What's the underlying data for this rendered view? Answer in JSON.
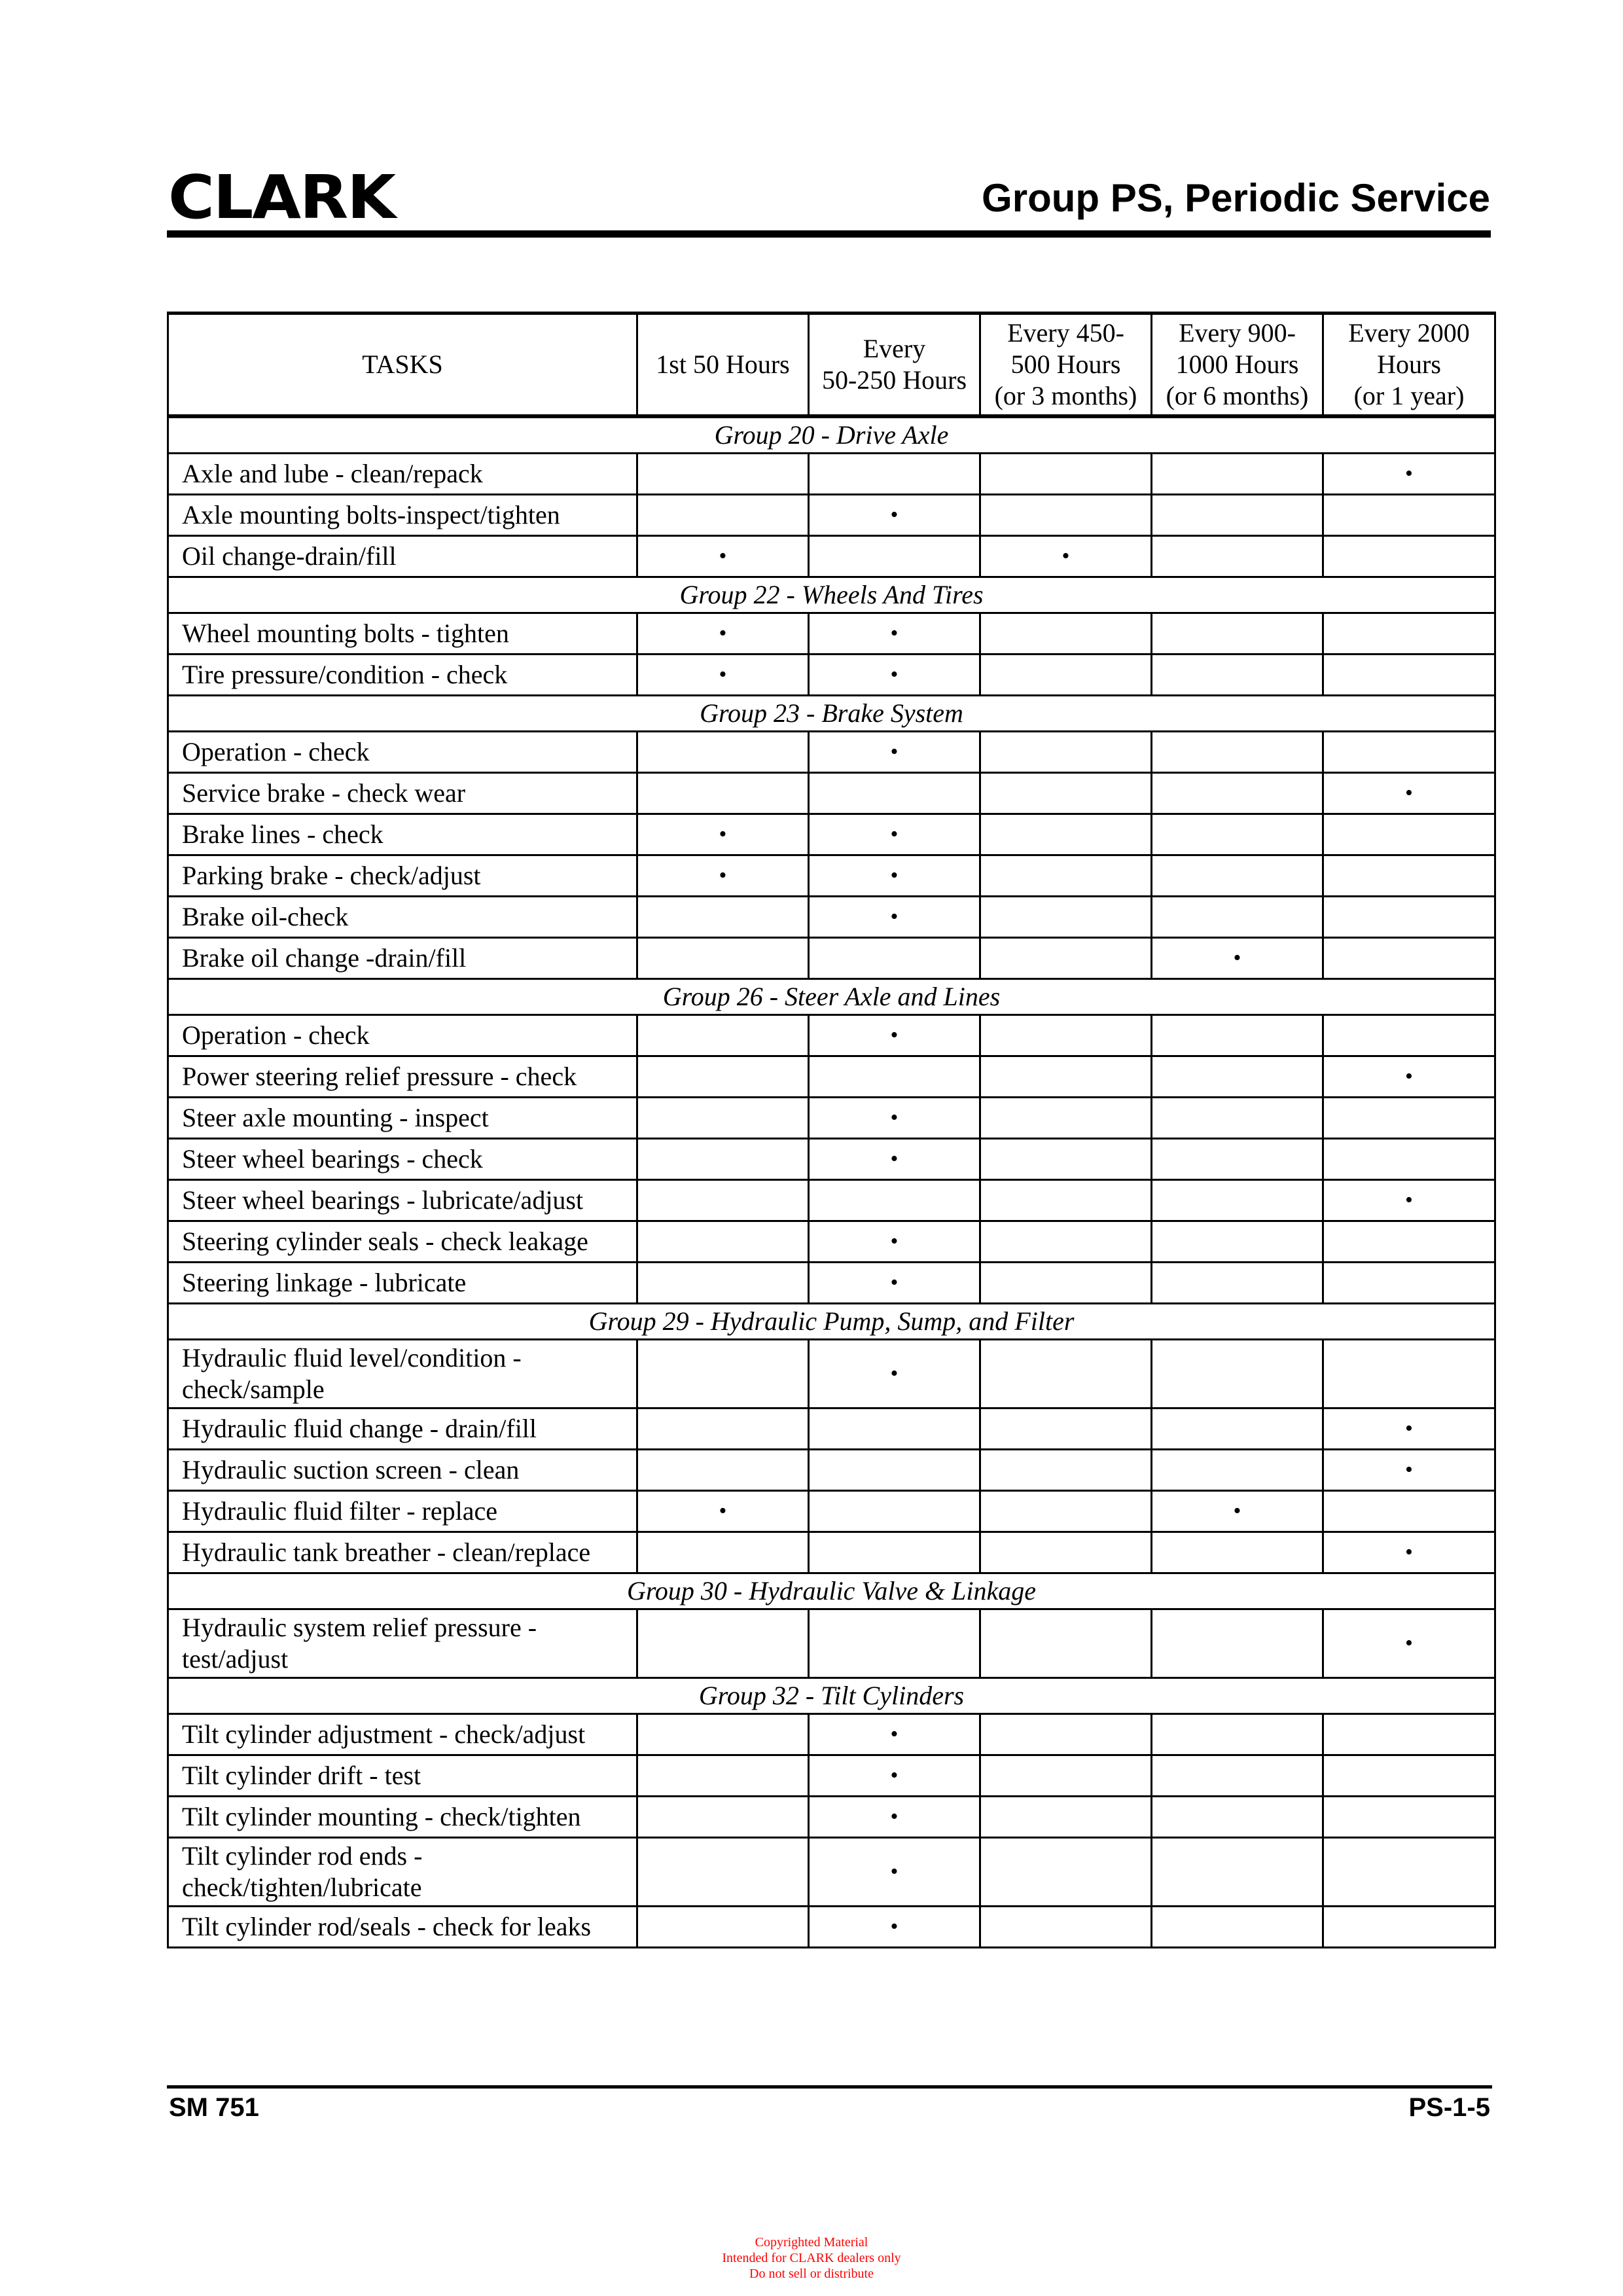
{
  "header": {
    "logo": "CLARK",
    "title": "Group PS, Periodic Service"
  },
  "mark_symbol": "•",
  "table": {
    "columns": [
      "TASKS",
      "1st 50 Hours",
      "Every\n50-250 Hours",
      "Every 450-\n500 Hours\n(or 3 months)",
      "Every 900-\n1000 Hours\n(or 6 months)",
      "Every 2000\nHours\n(or 1 year)"
    ],
    "groups": [
      {
        "title": "Group 20  - Drive Axle",
        "rows": [
          {
            "task": "Axle and lube - clean/repack",
            "checks": [
              false,
              false,
              false,
              false,
              true
            ]
          },
          {
            "task": "Axle mounting bolts-inspect/tighten",
            "checks": [
              false,
              true,
              false,
              false,
              false
            ]
          },
          {
            "task": "Oil change-drain/fill",
            "checks": [
              true,
              false,
              true,
              false,
              false
            ]
          }
        ]
      },
      {
        "title": "Group 22 - Wheels And Tires",
        "rows": [
          {
            "task": "Wheel mounting bolts - tighten",
            "checks": [
              true,
              true,
              false,
              false,
              false
            ]
          },
          {
            "task": "Tire pressure/condition - check",
            "checks": [
              true,
              true,
              false,
              false,
              false
            ]
          }
        ]
      },
      {
        "title": "Group 23 - Brake System",
        "rows": [
          {
            "task": "Operation - check",
            "checks": [
              false,
              true,
              false,
              false,
              false
            ]
          },
          {
            "task": "Service brake - check wear",
            "checks": [
              false,
              false,
              false,
              false,
              true
            ]
          },
          {
            "task": "Brake lines - check",
            "checks": [
              true,
              true,
              false,
              false,
              false
            ]
          },
          {
            "task": "Parking brake - check/adjust",
            "checks": [
              true,
              true,
              false,
              false,
              false
            ]
          },
          {
            "task": "Brake oil-check",
            "checks": [
              false,
              true,
              false,
              false,
              false
            ]
          },
          {
            "task": "Brake oil change -drain/fill",
            "checks": [
              false,
              false,
              false,
              true,
              false
            ]
          }
        ]
      },
      {
        "title": "Group 26 - Steer Axle and Lines",
        "rows": [
          {
            "task": "Operation - check",
            "checks": [
              false,
              true,
              false,
              false,
              false
            ]
          },
          {
            "task": "Power steering relief pressure - check",
            "checks": [
              false,
              false,
              false,
              false,
              true
            ]
          },
          {
            "task": "Steer axle mounting - inspect",
            "checks": [
              false,
              true,
              false,
              false,
              false
            ]
          },
          {
            "task": "Steer wheel bearings - check",
            "checks": [
              false,
              true,
              false,
              false,
              false
            ]
          },
          {
            "task": "Steer wheel bearings - lubricate/adjust",
            "checks": [
              false,
              false,
              false,
              false,
              true
            ]
          },
          {
            "task": "Steering cylinder seals - check leakage",
            "checks": [
              false,
              true,
              false,
              false,
              false
            ]
          },
          {
            "task": "Steering linkage - lubricate",
            "checks": [
              false,
              true,
              false,
              false,
              false
            ]
          }
        ]
      },
      {
        "title": "Group 29 - Hydraulic Pump, Sump, and Filter",
        "rows": [
          {
            "task": "Hydraulic fluid level/condition -\ncheck/sample",
            "checks": [
              false,
              true,
              false,
              false,
              false
            ]
          },
          {
            "task": "Hydraulic fluid change - drain/fill",
            "checks": [
              false,
              false,
              false,
              false,
              true
            ]
          },
          {
            "task": "Hydraulic suction screen - clean",
            "checks": [
              false,
              false,
              false,
              false,
              true
            ]
          },
          {
            "task": "Hydraulic fluid filter - replace",
            "checks": [
              true,
              false,
              false,
              true,
              false
            ]
          },
          {
            "task": "Hydraulic tank breather - clean/replace",
            "checks": [
              false,
              false,
              false,
              false,
              true
            ]
          }
        ]
      },
      {
        "title": "Group 30 - Hydraulic Valve & Linkage",
        "rows": [
          {
            "task": "Hydraulic system relief pressure -\ntest/adjust",
            "checks": [
              false,
              false,
              false,
              false,
              true
            ]
          }
        ]
      },
      {
        "title": "Group 32 - Tilt Cylinders",
        "rows": [
          {
            "task": "Tilt cylinder adjustment - check/adjust",
            "checks": [
              false,
              true,
              false,
              false,
              false
            ]
          },
          {
            "task": "Tilt cylinder drift - test",
            "checks": [
              false,
              true,
              false,
              false,
              false
            ]
          },
          {
            "task": "Tilt cylinder mounting - check/tighten",
            "checks": [
              false,
              true,
              false,
              false,
              false
            ]
          },
          {
            "task": "Tilt cylinder rod ends -\ncheck/tighten/lubricate",
            "checks": [
              false,
              true,
              false,
              false,
              false
            ]
          },
          {
            "task": "Tilt cylinder rod/seals - check for leaks",
            "checks": [
              false,
              true,
              false,
              false,
              false
            ]
          }
        ]
      }
    ]
  },
  "footer": {
    "left": "SM 751",
    "right": "PS-1-5"
  },
  "copyright": [
    "Copyrighted Material",
    "Intended for CLARK dealers only",
    "Do not sell or distribute"
  ],
  "colors": {
    "copyright": "#ff0000"
  }
}
